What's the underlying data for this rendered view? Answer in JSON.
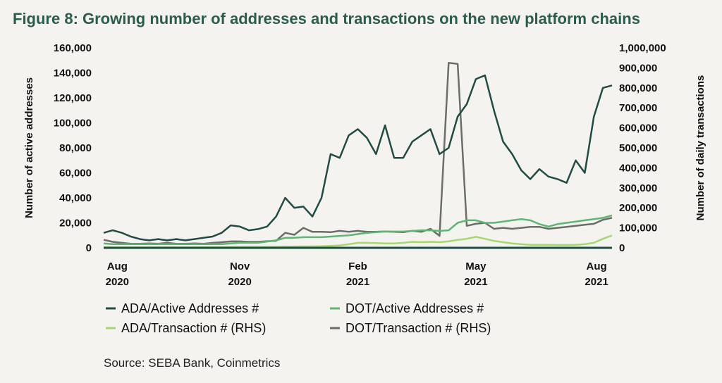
{
  "chart_data": {
    "type": "line",
    "title": "Figure 8: Growing number of addresses and transactions on the new platform chains",
    "ylabel": "Number of active addresses",
    "y2label": "Number of daily transactions",
    "ylim": [
      0,
      160000
    ],
    "y2lim": [
      0,
      1000000
    ],
    "yticks": [
      "0",
      "20,000",
      "40,000",
      "60,000",
      "80,000",
      "100,000",
      "120,000",
      "140,000",
      "160,000"
    ],
    "y2ticks": [
      "0",
      "100,000",
      "200,000",
      "300,000",
      "400,000",
      "500,000",
      "600,000",
      "700,000",
      "800,000",
      "900,000",
      "1,000,000"
    ],
    "xticks": [
      {
        "week": 1.5,
        "line1": "Aug",
        "line2": "2020"
      },
      {
        "week": 15,
        "line1": "Nov",
        "line2": "2020"
      },
      {
        "week": 28,
        "line1": "Feb",
        "line2": "2021"
      },
      {
        "week": 41,
        "line1": "May",
        "line2": "2021"
      },
      {
        "week": 54.3,
        "line1": "Aug",
        "line2": "2021"
      }
    ],
    "x_unit": "weeks from late July 2020",
    "series": [
      {
        "name": "ADA/Active Addresses #",
        "axis": "left",
        "color": "#1f4d44",
        "values": [
          12000,
          14000,
          12000,
          9000,
          7000,
          6000,
          7000,
          6000,
          7000,
          6000,
          7000,
          8000,
          9000,
          12000,
          18000,
          17000,
          14000,
          15000,
          17000,
          25000,
          40000,
          32000,
          33000,
          25000,
          40000,
          75000,
          72000,
          90000,
          95000,
          88000,
          75000,
          98000,
          72000,
          72000,
          85000,
          90000,
          95000,
          75000,
          80000,
          105000,
          115000,
          135000,
          138000,
          110000,
          85000,
          75000,
          62000,
          55000,
          63000,
          57000,
          55000,
          52000,
          70000,
          60000,
          105000,
          128000,
          130000
        ]
      },
      {
        "name": "DOT/Active Addresses #",
        "axis": "left",
        "color": "#5cb870",
        "values": [
          3500,
          3000,
          3000,
          3000,
          3000,
          3000,
          3000,
          3000,
          3000,
          3000,
          3000,
          3000,
          3000,
          3000,
          3500,
          4000,
          4000,
          4000,
          5000,
          6000,
          8000,
          8000,
          8500,
          8500,
          8500,
          9000,
          9500,
          10000,
          11000,
          12000,
          12500,
          13000,
          13000,
          13000,
          13500,
          14000,
          14000,
          13500,
          14000,
          20000,
          22000,
          22000,
          20000,
          20000,
          21000,
          22000,
          23000,
          22000,
          19000,
          17000,
          19000,
          20000,
          21000,
          22000,
          23000,
          24000,
          26000
        ]
      },
      {
        "name": "ADA/Transaction # (RHS)",
        "axis": "right",
        "color": "#a6d96a",
        "values": [
          3000,
          2000,
          2000,
          2000,
          2000,
          2000,
          2000,
          2000,
          2000,
          2000,
          2000,
          3000,
          3000,
          3000,
          4000,
          4000,
          4000,
          4000,
          5000,
          5000,
          6000,
          6000,
          7000,
          7000,
          8000,
          10000,
          12000,
          18000,
          25000,
          25000,
          24000,
          22000,
          22000,
          25000,
          30000,
          28000,
          30000,
          28000,
          32000,
          40000,
          45000,
          55000,
          45000,
          35000,
          28000,
          22000,
          18000,
          15000,
          15000,
          15000,
          14000,
          14000,
          15000,
          18000,
          25000,
          45000,
          62000
        ]
      },
      {
        "name": "DOT/Transaction # (RHS)",
        "axis": "right",
        "color": "#6b6e68",
        "values": [
          40000,
          30000,
          25000,
          20000,
          20000,
          22000,
          20000,
          25000,
          20000,
          20000,
          22000,
          20000,
          25000,
          28000,
          32000,
          32000,
          30000,
          30000,
          33000,
          35000,
          75000,
          65000,
          100000,
          80000,
          80000,
          78000,
          85000,
          80000,
          85000,
          80000,
          80000,
          82000,
          80000,
          78000,
          85000,
          80000,
          95000,
          60000,
          925000,
          920000,
          110000,
          120000,
          125000,
          95000,
          100000,
          95000,
          100000,
          105000,
          105000,
          95000,
          100000,
          105000,
          110000,
          115000,
          120000,
          140000,
          150000
        ]
      }
    ],
    "legend": "bottom",
    "grid": false
  },
  "source": "Source: SEBA Bank, Coinmetrics"
}
